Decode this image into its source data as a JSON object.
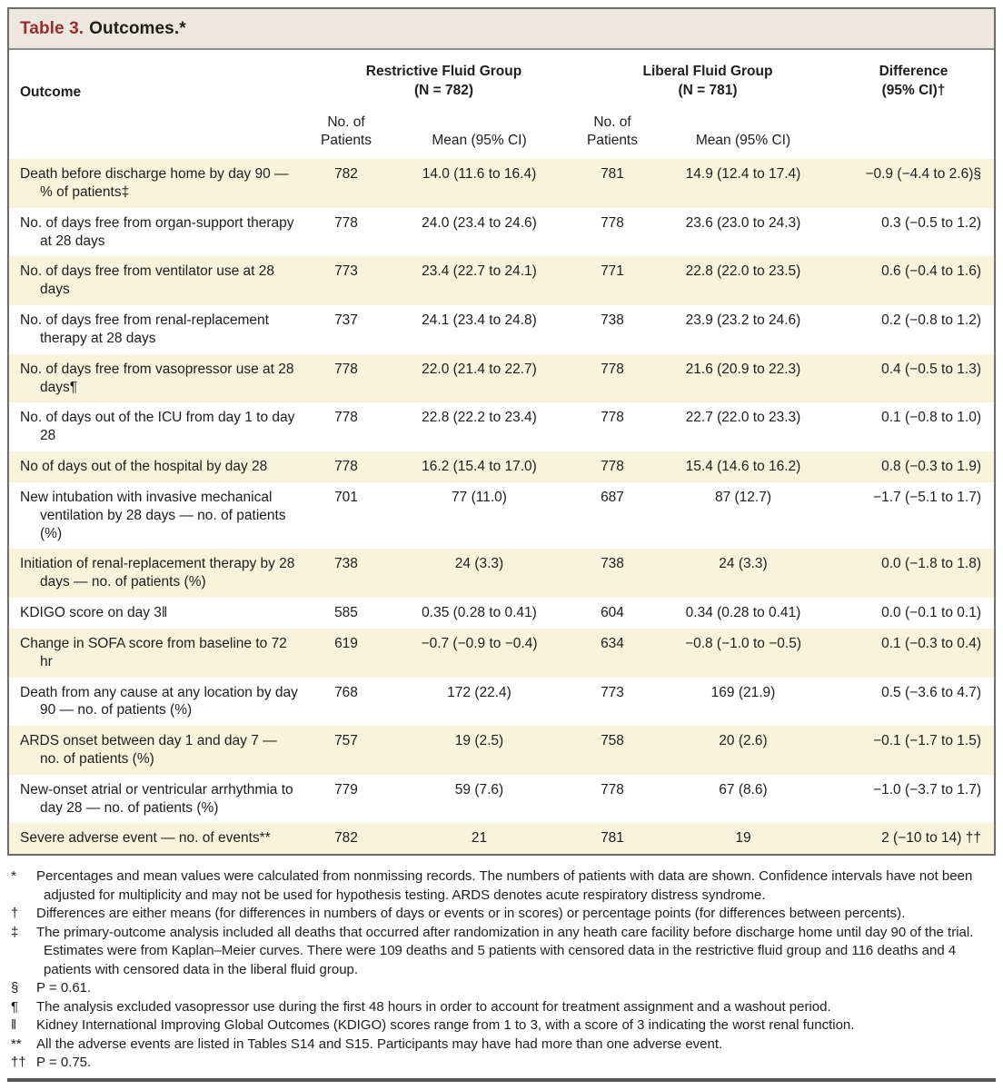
{
  "colors": {
    "accent_red": "#9e2a2b",
    "title_bar_bg": "#ece8df",
    "shaded_row_bg": "#faf3dc",
    "frame_border": "#6b6b68",
    "bottom_rule": "#55575a",
    "text": "#1d1d1b"
  },
  "title": {
    "label": "Table 3.",
    "text": "Outcomes.*"
  },
  "header": {
    "outcome": "Outcome",
    "group_restrictive": "Restrictive Fluid Group\n(N = 782)",
    "group_liberal": "Liberal Fluid Group\n(N = 781)",
    "difference": "Difference\n(95% CI)†",
    "sub": {
      "no_of_patients": "No. of\nPatients",
      "mean_ci": "Mean (95% CI)"
    }
  },
  "table": {
    "rows": [
      {
        "outcome": "Death before discharge home by day 90 — % of patients‡",
        "restrictive_n": "782",
        "restrictive_mean": "14.0 (11.6 to 16.4)",
        "liberal_n": "781",
        "liberal_mean": "14.9 (12.4 to 17.4)",
        "difference": "−0.9 (−4.4 to 2.6)§"
      },
      {
        "outcome": "No. of days free from organ-support therapy at 28 days",
        "restrictive_n": "778",
        "restrictive_mean": "24.0 (23.4 to 24.6)",
        "liberal_n": "778",
        "liberal_mean": "23.6 (23.0 to 24.3)",
        "difference": "0.3 (−0.5 to 1.2)"
      },
      {
        "outcome": "No. of days free from ventilator use at 28 days",
        "restrictive_n": "773",
        "restrictive_mean": "23.4 (22.7 to 24.1)",
        "liberal_n": "771",
        "liberal_mean": "22.8 (22.0 to 23.5)",
        "difference": "0.6 (−0.4 to 1.6)"
      },
      {
        "outcome": "No. of days free from renal-replacement therapy at 28 days",
        "restrictive_n": "737",
        "restrictive_mean": "24.1 (23.4 to 24.8)",
        "liberal_n": "738",
        "liberal_mean": "23.9 (23.2 to 24.6)",
        "difference": "0.2 (−0.8 to 1.2)"
      },
      {
        "outcome": "No. of days free from vasopressor use at 28 days¶",
        "restrictive_n": "778",
        "restrictive_mean": "22.0 (21.4 to 22.7)",
        "liberal_n": "778",
        "liberal_mean": "21.6 (20.9 to 22.3)",
        "difference": "0.4 (−0.5 to 1.3)"
      },
      {
        "outcome": "No. of days out of the ICU from day 1 to day 28",
        "restrictive_n": "778",
        "restrictive_mean": "22.8 (22.2 to 23.4)",
        "liberal_n": "778",
        "liberal_mean": "22.7 (22.0 to 23.3)",
        "difference": "0.1 (−0.8 to 1.0)"
      },
      {
        "outcome": "No of days out of the hospital by day 28",
        "restrictive_n": "778",
        "restrictive_mean": "16.2 (15.4 to 17.0)",
        "liberal_n": "778",
        "liberal_mean": "15.4 (14.6 to 16.2)",
        "difference": "0.8 (−0.3 to 1.9)"
      },
      {
        "outcome": "New intubation with invasive mechanical ventilation by 28 days — no. of patients (%)",
        "restrictive_n": "701",
        "restrictive_mean": "77 (11.0)",
        "liberal_n": "687",
        "liberal_mean": "87 (12.7)",
        "difference": "−1.7 (−5.1 to 1.7)"
      },
      {
        "outcome": "Initiation of renal-replacement therapy by 28 days — no. of patients (%)",
        "restrictive_n": "738",
        "restrictive_mean": "24 (3.3)",
        "liberal_n": "738",
        "liberal_mean": "24 (3.3)",
        "difference": "0.0 (−1.8 to 1.8)"
      },
      {
        "outcome": "KDIGO score on day 3‖",
        "restrictive_n": "585",
        "restrictive_mean": "0.35 (0.28 to 0.41)",
        "liberal_n": "604",
        "liberal_mean": "0.34 (0.28 to 0.41)",
        "difference": "0.0 (−0.1 to 0.1)"
      },
      {
        "outcome": "Change in SOFA score from baseline to 72 hr",
        "restrictive_n": "619",
        "restrictive_mean": "−0.7 (−0.9 to −0.4)",
        "liberal_n": "634",
        "liberal_mean": "−0.8 (−1.0 to −0.5)",
        "difference": "0.1 (−0.3 to 0.4)"
      },
      {
        "outcome": "Death from any cause at any location by day 90 — no. of patients (%)",
        "restrictive_n": "768",
        "restrictive_mean": "172 (22.4)",
        "liberal_n": "773",
        "liberal_mean": "169 (21.9)",
        "difference": "0.5 (−3.6 to 4.7)"
      },
      {
        "outcome": "ARDS onset between day 1 and day 7 — no. of patients (%)",
        "restrictive_n": "757",
        "restrictive_mean": "19 (2.5)",
        "liberal_n": "758",
        "liberal_mean": "20 (2.6)",
        "difference": "−0.1 (−1.7 to 1.5)"
      },
      {
        "outcome": "New-onset atrial or ventricular arrhythmia to day 28 — no. of patients (%)",
        "restrictive_n": "779",
        "restrictive_mean": "59 (7.6)",
        "liberal_n": "778",
        "liberal_mean": "67 (8.6)",
        "difference": "−1.0 (−3.7 to 1.7)"
      },
      {
        "outcome": "Severe adverse event — no. of events**",
        "restrictive_n": "782",
        "restrictive_mean": "21",
        "liberal_n": "781",
        "liberal_mean": "19",
        "difference": "2 (−10 to 14) ††"
      }
    ]
  },
  "footnotes": [
    {
      "marker": "*",
      "text": "Percentages and mean values were calculated from nonmissing records. The numbers of patients with data are shown. Confidence intervals have not been adjusted for multiplicity and may not be used for hypothesis testing. ARDS denotes acute respiratory distress syndrome."
    },
    {
      "marker": "†",
      "text": "Differences are either means (for differences in numbers of days or events or in scores) or percentage points (for differences between percents)."
    },
    {
      "marker": "‡",
      "text": "The primary-outcome analysis included all deaths that occurred after randomization in any heath care facility before discharge home until day 90 of the trial. Estimates were from Kaplan–Meier curves. There were 109 deaths and 5 patients with censored data in the restrictive fluid group and 116 deaths and 4 patients with censored data in the liberal fluid group."
    },
    {
      "marker": "§",
      "text": "P = 0.61."
    },
    {
      "marker": "¶",
      "text": "The analysis excluded vasopressor use during the first 48 hours in order to account for treatment assignment and a washout period."
    },
    {
      "marker": "‖",
      "text": "Kidney International Improving Global Outcomes (KDIGO) scores range from 1 to 3, with a score of 3 indicating the worst renal function."
    },
    {
      "marker": "**",
      "text": "All the adverse events are listed in Tables S14 and S15. Participants may have had more than one adverse event."
    },
    {
      "marker": "††",
      "text": "P = 0.75."
    }
  ]
}
